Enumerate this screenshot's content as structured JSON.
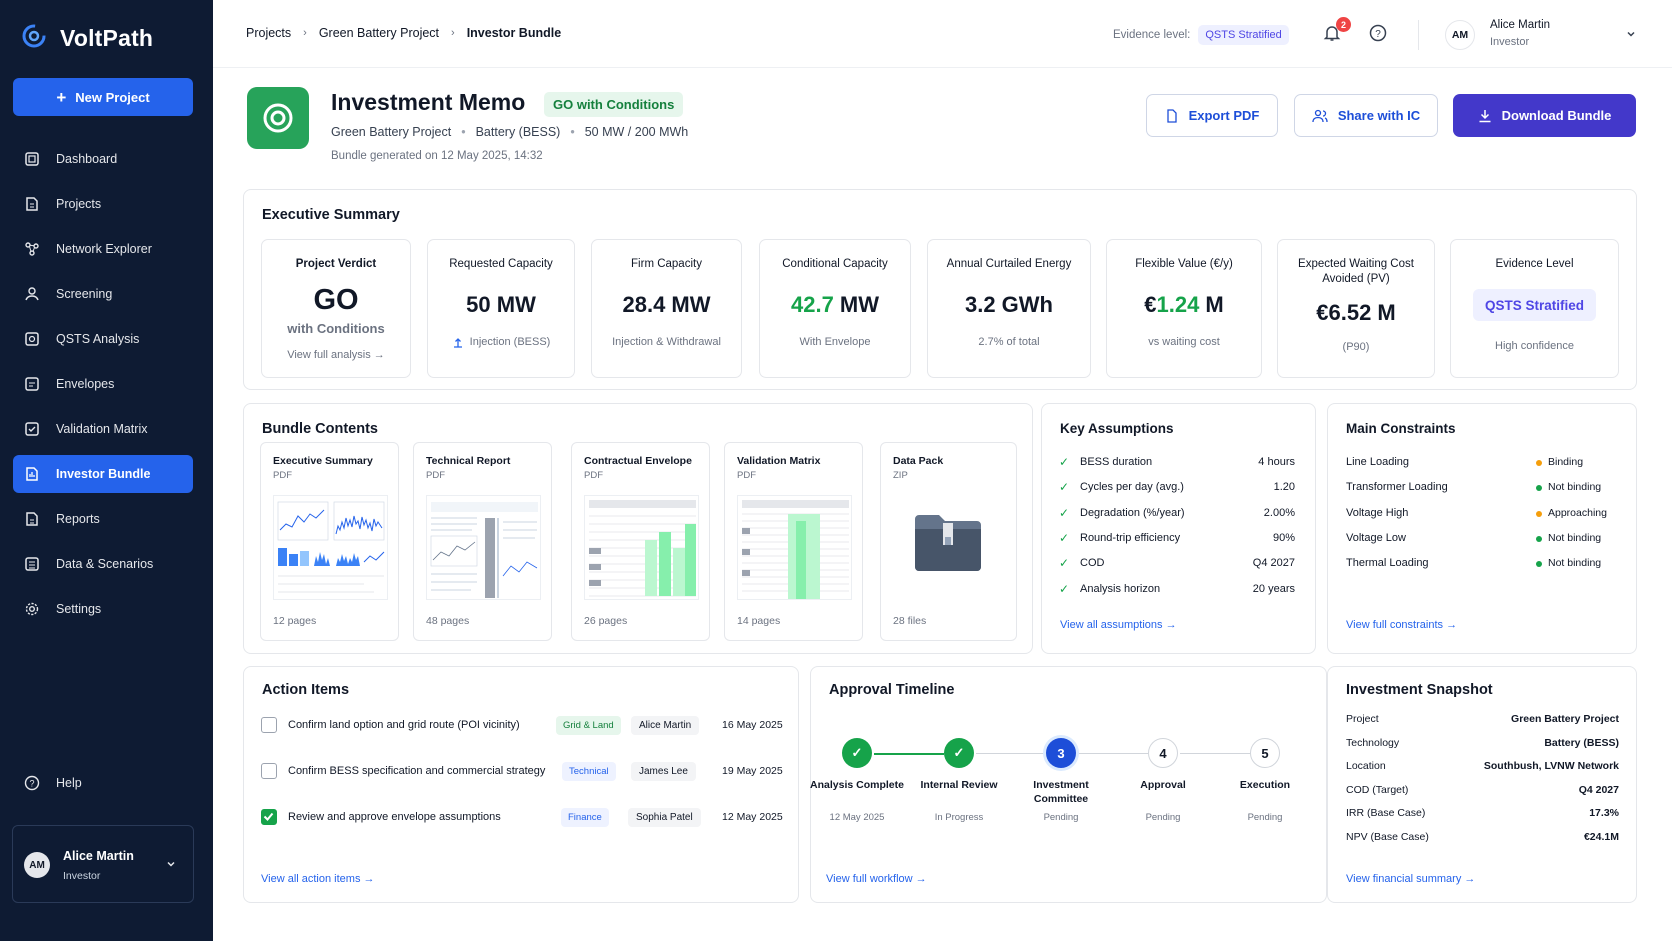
{
  "app": {
    "name": "VoltPath",
    "new_project": "New Project"
  },
  "sidebar": {
    "items": [
      {
        "label": "Dashboard",
        "icon": "dashboard-icon"
      },
      {
        "label": "Projects",
        "icon": "projects-icon"
      },
      {
        "label": "Network Explorer",
        "icon": "network-icon"
      },
      {
        "label": "Screening",
        "icon": "screening-icon"
      },
      {
        "label": "QSTS Analysis",
        "icon": "qsts-icon"
      },
      {
        "label": "Envelopes",
        "icon": "envelopes-icon"
      },
      {
        "label": "Validation Matrix",
        "icon": "validation-icon"
      },
      {
        "label": "Investor Bundle",
        "icon": "bundle-icon",
        "active": true
      },
      {
        "label": "Reports",
        "icon": "reports-icon"
      },
      {
        "label": "Data & Scenarios",
        "icon": "data-icon"
      },
      {
        "label": "Settings",
        "icon": "gear-icon"
      }
    ],
    "help": "Help",
    "user": {
      "initials": "AM",
      "name": "Alice Martin",
      "role": "Investor"
    }
  },
  "topbar": {
    "breadcrumb": [
      "Projects",
      "Green Battery Project",
      "Investor Bundle"
    ],
    "evidence_label": "Evidence level:",
    "evidence_value": "QSTS Stratified",
    "notifications": "2",
    "user": {
      "initials": "AM",
      "name": "Alice Martin",
      "role": "Investor"
    }
  },
  "header": {
    "title": "Investment Memo",
    "status": "GO with Conditions",
    "project": "Green Battery Project",
    "tech": "Battery (BESS)",
    "size": "50 MW / 200 MWh",
    "generated": "Bundle generated on 12 May 2025, 14:32",
    "export": "Export PDF",
    "share": "Share with IC",
    "download": "Download Bundle"
  },
  "summary": {
    "title": "Executive Summary",
    "verdict": {
      "label": "Project Verdict",
      "value": "GO",
      "sub": "with Conditions",
      "link": "View full analysis →"
    },
    "metrics": [
      {
        "label": "Requested Capacity",
        "value": "50 MW",
        "sub": "Injection (BESS)"
      },
      {
        "label": "Firm Capacity",
        "value": "28.4 MW",
        "sub": "Injection & Withdrawal"
      },
      {
        "label": "Conditional Capacity",
        "num": "42.7",
        "unit": " MW",
        "sub": "With Envelope"
      },
      {
        "label": "Annual Curtailed Energy",
        "value": "3.2 GWh",
        "sub": "2.7% of total"
      },
      {
        "label": "Flexible Value (€/y)",
        "pre": "€",
        "num": "1.24",
        "unit": " M",
        "sub": "vs waiting cost"
      },
      {
        "label": "Expected Waiting Cost Avoided (PV)",
        "value": "€6.52 M",
        "sub": "(P90)"
      },
      {
        "label": "Evidence Level",
        "value": "QSTS Stratified",
        "sub": "High confidence"
      }
    ]
  },
  "bundle": {
    "title": "Bundle Contents",
    "docs": [
      {
        "title": "Executive Summary",
        "type": "PDF",
        "pages": "12 pages"
      },
      {
        "title": "Technical Report",
        "type": "PDF",
        "pages": "48 pages"
      },
      {
        "title": "Contractual Envelope",
        "type": "PDF",
        "pages": "26 pages"
      },
      {
        "title": "Validation Matrix",
        "type": "PDF",
        "pages": "14 pages"
      },
      {
        "title": "Data Pack",
        "type": "ZIP",
        "pages": "28 files"
      }
    ]
  },
  "assumptions": {
    "title": "Key Assumptions",
    "items": [
      {
        "label": "BESS duration",
        "value": "4 hours"
      },
      {
        "label": "Cycles per day (avg.)",
        "value": "1.20"
      },
      {
        "label": "Degradation (%/year)",
        "value": "2.00%"
      },
      {
        "label": "Round-trip efficiency",
        "value": "90%"
      },
      {
        "label": "COD",
        "value": "Q4 2027"
      },
      {
        "label": "Analysis horizon",
        "value": "20 years"
      }
    ],
    "link": "View all assumptions →"
  },
  "constraints": {
    "title": "Main Constraints",
    "items": [
      {
        "label": "Line Loading",
        "status": "Binding",
        "color": "#f59e0b"
      },
      {
        "label": "Transformer Loading",
        "status": "Not binding",
        "color": "#16a34a"
      },
      {
        "label": "Voltage High",
        "status": "Approaching",
        "color": "#f59e0b"
      },
      {
        "label": "Voltage Low",
        "status": "Not binding",
        "color": "#16a34a"
      },
      {
        "label": "Thermal Loading",
        "status": "Not binding",
        "color": "#16a34a"
      }
    ],
    "link": "View full constraints →"
  },
  "actions": {
    "title": "Action Items",
    "items": [
      {
        "text": "Confirm land option and grid route (POI vicinity)",
        "tag": "Grid & Land",
        "owner": "Alice Martin",
        "date": "16 May 2025",
        "done": false
      },
      {
        "text": "Confirm BESS specification and commercial strategy",
        "tag": "Technical",
        "owner": "James Lee",
        "date": "19 May 2025",
        "done": false
      },
      {
        "text": "Review and approve envelope assumptions",
        "tag": "Finance",
        "owner": "Sophia Patel",
        "date": "12 May 2025",
        "done": true
      }
    ],
    "link": "View all action items →"
  },
  "timeline": {
    "title": "Approval Timeline",
    "steps": [
      {
        "n": "✓",
        "label": "Analysis Complete",
        "sub": "12 May 2025",
        "state": "done"
      },
      {
        "n": "✓",
        "label": "Internal Review",
        "sub": "In Progress",
        "state": "done"
      },
      {
        "n": "3",
        "label": "Investment Committee",
        "sub": "Pending",
        "state": "current"
      },
      {
        "n": "4",
        "label": "Approval",
        "sub": "Pending",
        "state": "todo"
      },
      {
        "n": "5",
        "label": "Execution",
        "sub": "Pending",
        "state": "todo"
      }
    ],
    "link": "View full workflow →"
  },
  "snapshot": {
    "title": "Investment Snapshot",
    "items": [
      {
        "label": "Project",
        "value": "Green Battery Project"
      },
      {
        "label": "Technology",
        "value": "Battery (BESS)"
      },
      {
        "label": "Location",
        "value": "Southbush, LVNW Network"
      },
      {
        "label": "COD (Target)",
        "value": "Q4 2027"
      },
      {
        "label": "IRR (Base Case)",
        "value": "17.3%"
      },
      {
        "label": "NPV (Base Case)",
        "value": "€24.1M"
      }
    ],
    "link": "View financial summary →"
  }
}
